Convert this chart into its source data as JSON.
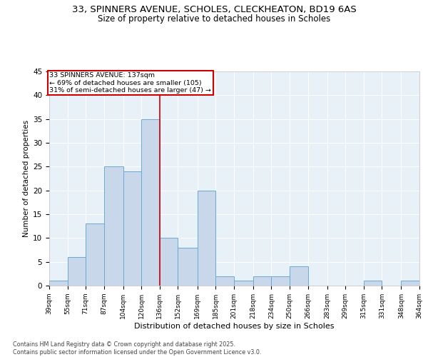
{
  "title_line1": "33, SPINNERS AVENUE, SCHOLES, CLECKHEATON, BD19 6AS",
  "title_line2": "Size of property relative to detached houses in Scholes",
  "xlabel": "Distribution of detached houses by size in Scholes",
  "ylabel": "Number of detached properties",
  "bar_values": [
    1,
    6,
    13,
    25,
    24,
    35,
    10,
    8,
    20,
    2,
    1,
    2,
    2,
    4,
    0,
    0,
    0,
    1,
    0,
    1
  ],
  "bin_edges": [
    39,
    55,
    71,
    87,
    104,
    120,
    136,
    152,
    169,
    185,
    201,
    218,
    234,
    250,
    266,
    283,
    299,
    315,
    331,
    348,
    364
  ],
  "bar_color": "#c8d8ea",
  "bar_edge_color": "#6aaad4",
  "property_line_x": 136,
  "property_line_color": "#cc0000",
  "annotation_text": "33 SPINNERS AVENUE: 137sqm\n← 69% of detached houses are smaller (105)\n31% of semi-detached houses are larger (47) →",
  "annotation_box_color": "#cc0000",
  "annotation_text_color": "#000000",
  "ylim": [
    0,
    45
  ],
  "yticks": [
    0,
    5,
    10,
    15,
    20,
    25,
    30,
    35,
    40,
    45
  ],
  "background_color": "#e8f0f8",
  "grid_color": "#ffffff",
  "footer_text": "Contains HM Land Registry data © Crown copyright and database right 2025.\nContains public sector information licensed under the Open Government Licence v3.0.",
  "fig_bg_color": "#ffffff"
}
